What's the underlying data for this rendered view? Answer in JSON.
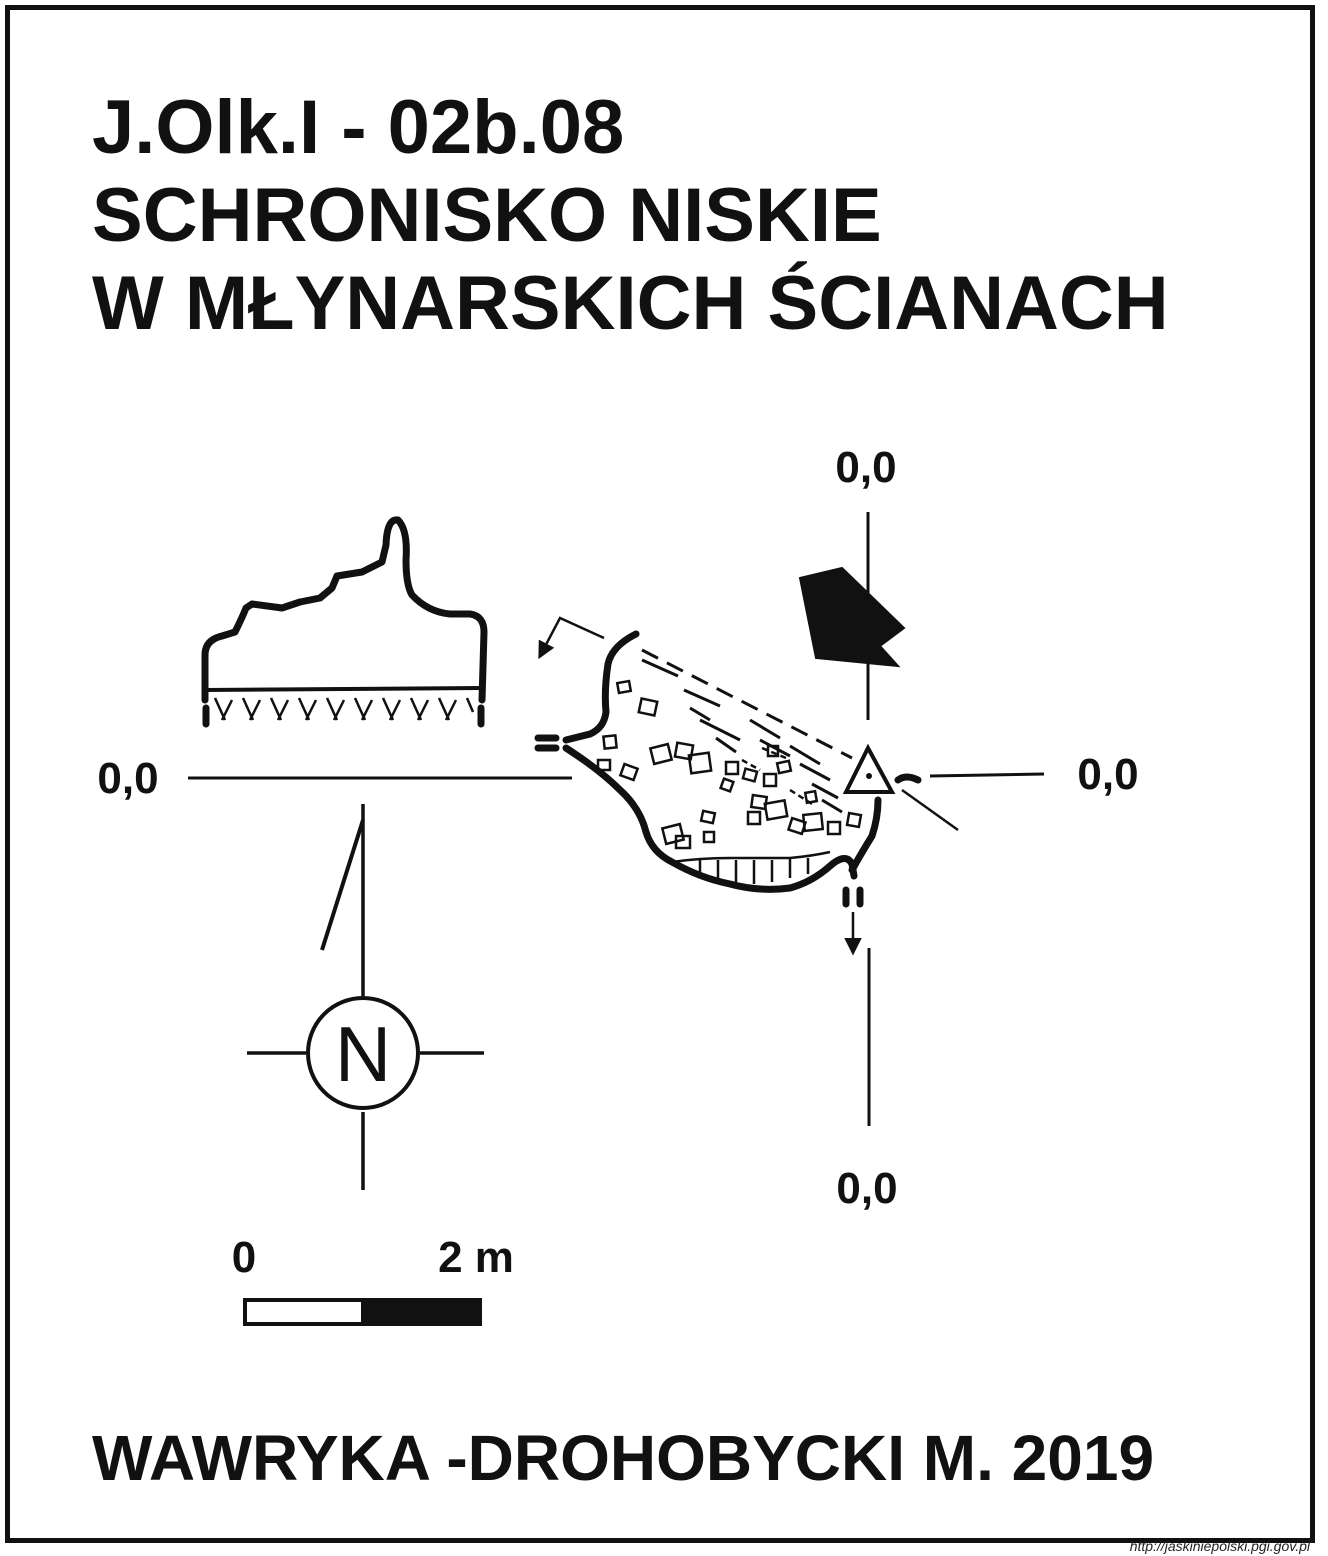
{
  "title": {
    "code": "J.Olk.I - 02b.08",
    "name_line1": "SCHRONISKO NISKIE",
    "name_line2": "W MŁYNARSKICH ŚCIANACH"
  },
  "section_labels": {
    "top": "0,0",
    "left": "0,0",
    "right": "0,0",
    "bottom": "0,0"
  },
  "north_arrow": {
    "letter": "N"
  },
  "scale_bar": {
    "start_label": "0",
    "end_label": "2 m"
  },
  "author": "WAWRYKA -DROHOBYCKI M. 2019",
  "source_url": "http://jaskiniepolski.pgi.gov.pl",
  "colors": {
    "ink": "#111111",
    "paper": "#ffffff"
  }
}
